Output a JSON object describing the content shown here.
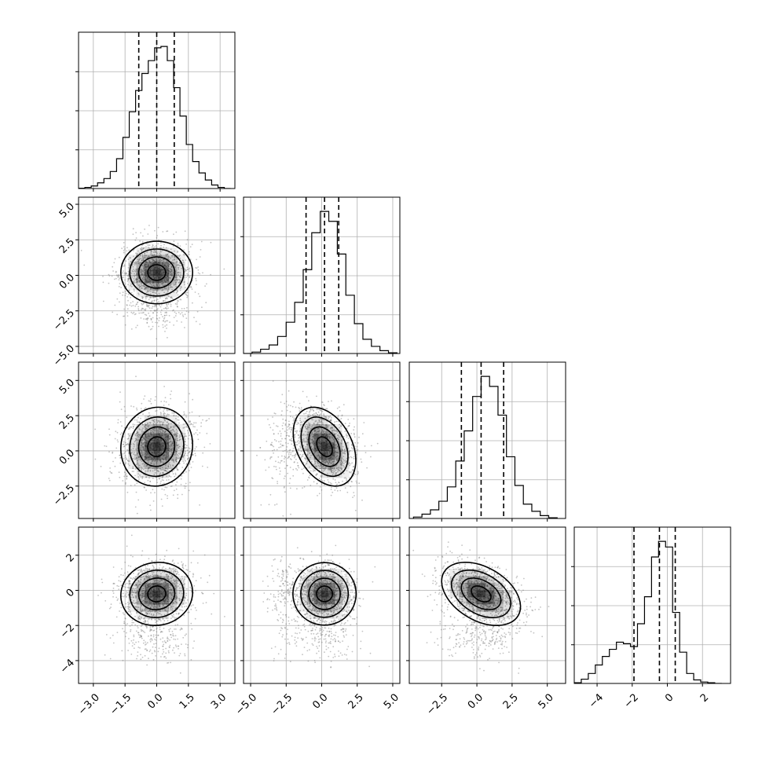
{
  "chart_data": {
    "type": "corner",
    "params": [
      {
        "name": "",
        "lim": [
          -3.7,
          3.7
        ],
        "ticks": [
          -3.0,
          -1.5,
          0.0,
          1.5,
          3.0
        ],
        "tick_labels": [
          "−3.0",
          "−1.5",
          "0.0",
          "1.5",
          "3.0"
        ],
        "hist": {
          "bins": [
            -3.7,
            -3.4,
            -3.1,
            -2.8,
            -2.5,
            -2.2,
            -1.9,
            -1.6,
            -1.3,
            -1.0,
            -0.7,
            -0.4,
            -0.1,
            0.2,
            0.5,
            0.8,
            1.1,
            1.4,
            1.7,
            2.0,
            2.3,
            2.6,
            2.9,
            3.2,
            3.5
          ],
          "counts": [
            0.002,
            0.008,
            0.018,
            0.04,
            0.07,
            0.12,
            0.21,
            0.36,
            0.54,
            0.69,
            0.81,
            0.9,
            0.99,
            1.0,
            0.9,
            0.71,
            0.51,
            0.31,
            0.19,
            0.11,
            0.06,
            0.025,
            0.008,
            0.0
          ]
        },
        "quantiles": [
          -0.85,
          0.0,
          0.83
        ],
        "mean": 0.0,
        "sigma": 0.85
      },
      {
        "name": "",
        "lim": [
          -5.5,
          5.5
        ],
        "ticks": [
          -5.0,
          -2.5,
          0.0,
          2.5,
          5.0
        ],
        "tick_labels": [
          "−5.0",
          "−2.5",
          "0.0",
          "2.5",
          "5.0"
        ],
        "hist": {
          "bins": [
            -5.5,
            -4.9,
            -4.3,
            -3.7,
            -3.1,
            -2.5,
            -1.9,
            -1.3,
            -0.7,
            -0.1,
            0.5,
            1.1,
            1.7,
            2.3,
            2.9,
            3.5,
            4.1,
            4.7,
            5.3
          ],
          "counts": [
            0.0,
            0.01,
            0.03,
            0.06,
            0.12,
            0.22,
            0.36,
            0.59,
            0.85,
            1.0,
            0.93,
            0.7,
            0.41,
            0.21,
            0.1,
            0.05,
            0.02,
            0.005
          ]
        },
        "quantiles": [
          -1.1,
          0.2,
          1.2
        ],
        "mean": 0.2,
        "sigma": 1.1
      },
      {
        "name": "",
        "lim": [
          -4.8,
          6.3
        ],
        "ticks": [
          -2.5,
          0.0,
          2.5,
          5.0
        ],
        "tick_labels": [
          "−2.5",
          "0.0",
          "2.5",
          "5.0"
        ],
        "hist": {
          "bins": [
            -4.5,
            -3.9,
            -3.3,
            -2.7,
            -2.1,
            -1.5,
            -0.9,
            -0.3,
            0.3,
            0.9,
            1.5,
            2.1,
            2.7,
            3.3,
            3.9,
            4.5,
            5.1,
            5.7
          ],
          "counts": [
            0.01,
            0.03,
            0.06,
            0.12,
            0.22,
            0.4,
            0.61,
            0.85,
            0.99,
            0.92,
            0.72,
            0.43,
            0.23,
            0.1,
            0.05,
            0.02,
            0.005
          ]
        },
        "quantiles": [
          -1.1,
          0.3,
          1.9
        ],
        "mean": 0.3,
        "sigma": 1.4
      },
      {
        "name": "",
        "lim": [
          -5.3,
          3.6
        ],
        "ticks": [
          -4,
          -2,
          0,
          2
        ],
        "tick_labels": [
          "−4",
          "−2",
          "0",
          "2"
        ],
        "hist": {
          "bins": [
            -5.3,
            -4.9,
            -4.5,
            -4.1,
            -3.7,
            -3.3,
            -2.9,
            -2.5,
            -2.1,
            -1.7,
            -1.3,
            -0.9,
            -0.5,
            -0.1,
            0.3,
            0.7,
            1.1,
            1.5,
            1.9,
            2.3,
            2.7,
            3.1
          ],
          "counts": [
            0.005,
            0.03,
            0.07,
            0.13,
            0.19,
            0.24,
            0.29,
            0.28,
            0.26,
            0.42,
            0.61,
            0.89,
            1.0,
            0.96,
            0.5,
            0.22,
            0.07,
            0.025,
            0.01,
            0.005,
            0.0
          ]
        },
        "quantiles": [
          -1.9,
          -0.45,
          0.45
        ],
        "mean": -0.2,
        "sigma": 0.9
      }
    ],
    "correlations": [
      [
        1.0,
        0.0,
        0.05,
        0.05
      ],
      [
        0.0,
        1.0,
        -0.35,
        0.0
      ],
      [
        0.05,
        -0.35,
        1.0,
        -0.4
      ],
      [
        0.05,
        0.0,
        -0.4,
        1.0
      ]
    ],
    "secondary_modes": {
      "1": {
        "mean": -2.6,
        "sigma": 0.7,
        "weight": 0.12
      },
      "3": {
        "mean": -2.7,
        "sigma": 0.7,
        "weight": 0.13
      }
    },
    "contour_levels_sigma": [
      0.5,
      1.0,
      1.5,
      2.0
    ],
    "grid": true
  }
}
